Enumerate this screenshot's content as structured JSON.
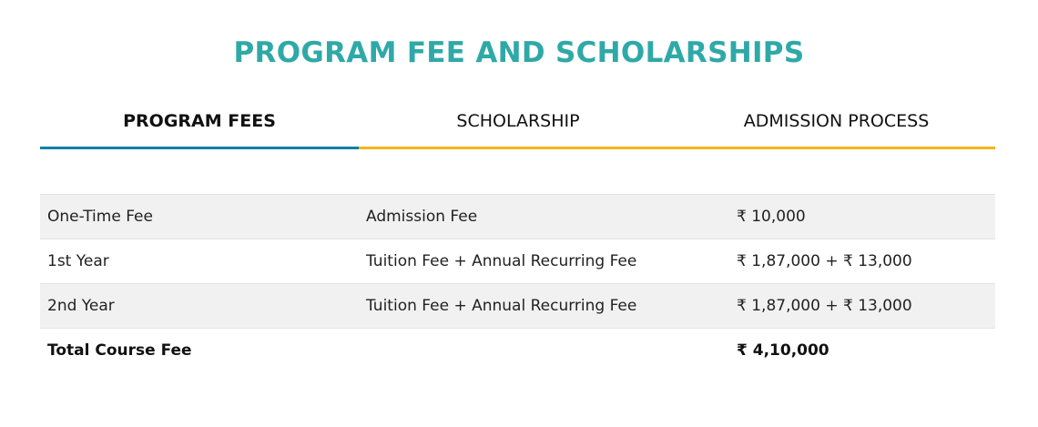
{
  "title": "PROGRAM FEE AND SCHOLARSHIPS",
  "tabs": [
    {
      "label": "PROGRAM FEES",
      "active": true
    },
    {
      "label": "SCHOLARSHIP",
      "active": false
    },
    {
      "label": "ADMISSION PROCESS",
      "active": false
    }
  ],
  "colors": {
    "title": "#2fa9a8",
    "active_tab": "#0f80a5",
    "inactive_tab": "#f5b51c"
  },
  "fees": {
    "rows": [
      {
        "period": "One-Time Fee",
        "type": "Admission Fee",
        "amount": "₹ 10,000"
      },
      {
        "period": "1st Year",
        "type": "Tuition Fee + Annual Recurring Fee",
        "amount": "₹ 1,87,000 + ₹ 13,000"
      },
      {
        "period": "2nd Year",
        "type": "Tuition Fee + Annual Recurring Fee",
        "amount": "₹ 1,87,000 + ₹ 13,000"
      }
    ],
    "total": {
      "label": "Total Course Fee",
      "amount": "₹ 4,10,000"
    }
  }
}
